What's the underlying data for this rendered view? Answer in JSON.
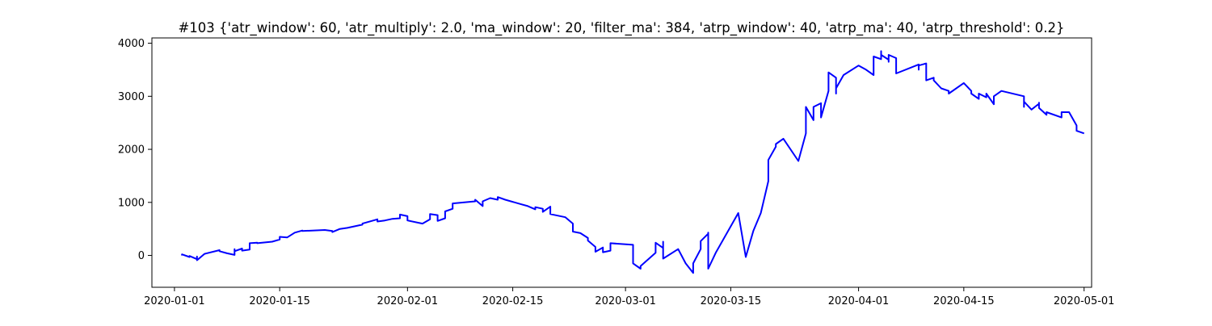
{
  "chart_data": {
    "type": "line",
    "title": "#103 {'atr_window': 60, 'atr_multiply': 2.0, 'ma_window': 20, 'filter_ma': 384, 'atrp_window': 40, 'atrp_ma': 40, 'atrp_threshold': 0.2}",
    "xlabel": "",
    "ylabel": "",
    "x_ticks": [
      "2020-01-01",
      "2020-01-15",
      "2020-02-01",
      "2020-02-15",
      "2020-03-01",
      "2020-03-15",
      "2020-04-01",
      "2020-04-15",
      "2020-05-01"
    ],
    "y_ticks": [
      0,
      1000,
      2000,
      3000,
      4000
    ],
    "xlim": [
      "2019-12-29",
      "2020-05-02"
    ],
    "ylim": [
      -600,
      4100
    ],
    "grid": false,
    "colors": {
      "line": "#0000ff",
      "axes": "#000000",
      "background": "#ffffff"
    },
    "series": [
      {
        "points": [
          [
            "2020-01-02",
            0
          ],
          [
            "2020-01-02",
            20
          ],
          [
            "2020-01-03",
            -30
          ],
          [
            "2020-01-03",
            -10
          ],
          [
            "2020-01-04",
            -70
          ],
          [
            "2020-01-04",
            -20
          ],
          [
            "2020-01-04",
            -90
          ],
          [
            "2020-01-05",
            30
          ],
          [
            "2020-01-07",
            100
          ],
          [
            "2020-01-07",
            80
          ],
          [
            "2020-01-08",
            40
          ],
          [
            "2020-01-09",
            10
          ],
          [
            "2020-01-09",
            120
          ],
          [
            "2020-01-09",
            80
          ],
          [
            "2020-01-10",
            130
          ],
          [
            "2020-01-10",
            90
          ],
          [
            "2020-01-11",
            110
          ],
          [
            "2020-01-11",
            230
          ],
          [
            "2020-01-12",
            240
          ],
          [
            "2020-01-12",
            230
          ],
          [
            "2020-01-14",
            260
          ],
          [
            "2020-01-15",
            300
          ],
          [
            "2020-01-15",
            350
          ],
          [
            "2020-01-16",
            340
          ],
          [
            "2020-01-17",
            430
          ],
          [
            "2020-01-18",
            470
          ],
          [
            "2020-01-18",
            460
          ],
          [
            "2020-01-21",
            480
          ],
          [
            "2020-01-22",
            460
          ],
          [
            "2020-01-22",
            440
          ],
          [
            "2020-01-23",
            500
          ],
          [
            "2020-01-24",
            520
          ],
          [
            "2020-01-26",
            580
          ],
          [
            "2020-01-26",
            600
          ],
          [
            "2020-01-28",
            680
          ],
          [
            "2020-01-28",
            640
          ],
          [
            "2020-01-29",
            660
          ],
          [
            "2020-01-30",
            690
          ],
          [
            "2020-01-31",
            700
          ],
          [
            "2020-01-31",
            770
          ],
          [
            "2020-02-01",
            740
          ],
          [
            "2020-02-01",
            660
          ],
          [
            "2020-02-03",
            600
          ],
          [
            "2020-02-04",
            680
          ],
          [
            "2020-02-04",
            780
          ],
          [
            "2020-02-05",
            760
          ],
          [
            "2020-02-05",
            730
          ],
          [
            "2020-02-05",
            760
          ],
          [
            "2020-02-05",
            650
          ],
          [
            "2020-02-06",
            700
          ],
          [
            "2020-02-06",
            830
          ],
          [
            "2020-02-07",
            880
          ],
          [
            "2020-02-07",
            980
          ],
          [
            "2020-02-10",
            1020
          ],
          [
            "2020-02-10",
            1050
          ],
          [
            "2020-02-11",
            930
          ],
          [
            "2020-02-11",
            970
          ],
          [
            "2020-02-11",
            1020
          ],
          [
            "2020-02-12",
            1080
          ],
          [
            "2020-02-13",
            1050
          ],
          [
            "2020-02-13",
            1100
          ],
          [
            "2020-02-14",
            1050
          ],
          [
            "2020-02-16",
            970
          ],
          [
            "2020-02-17",
            930
          ],
          [
            "2020-02-18",
            870
          ],
          [
            "2020-02-18",
            910
          ],
          [
            "2020-02-19",
            880
          ],
          [
            "2020-02-19",
            820
          ],
          [
            "2020-02-20",
            920
          ],
          [
            "2020-02-20",
            780
          ],
          [
            "2020-02-22",
            720
          ],
          [
            "2020-02-23",
            600
          ],
          [
            "2020-02-23",
            450
          ],
          [
            "2020-02-24",
            420
          ],
          [
            "2020-02-25",
            330
          ],
          [
            "2020-02-25",
            280
          ],
          [
            "2020-02-26",
            160
          ],
          [
            "2020-02-26",
            70
          ],
          [
            "2020-02-27",
            150
          ],
          [
            "2020-02-27",
            60
          ],
          [
            "2020-02-28",
            90
          ],
          [
            "2020-02-28",
            230
          ],
          [
            "2020-03-02",
            200
          ],
          [
            "2020-03-02",
            -150
          ],
          [
            "2020-03-03",
            -250
          ],
          [
            "2020-03-03",
            -200
          ],
          [
            "2020-03-05",
            50
          ],
          [
            "2020-03-05",
            240
          ],
          [
            "2020-03-06",
            140
          ],
          [
            "2020-03-06",
            260
          ],
          [
            "2020-03-06",
            -60
          ],
          [
            "2020-03-08",
            120
          ],
          [
            "2020-03-09",
            -150
          ],
          [
            "2020-03-10",
            -330
          ],
          [
            "2020-03-10",
            -150
          ],
          [
            "2020-03-11",
            120
          ],
          [
            "2020-03-11",
            270
          ],
          [
            "2020-03-12",
            410
          ],
          [
            "2020-03-12",
            430
          ],
          [
            "2020-03-12",
            200
          ],
          [
            "2020-03-12",
            -220
          ],
          [
            "2020-03-12",
            -250
          ],
          [
            "2020-03-13",
            50
          ],
          [
            "2020-03-16",
            800
          ],
          [
            "2020-03-17",
            -30
          ],
          [
            "2020-03-18",
            460
          ],
          [
            "2020-03-19",
            800
          ],
          [
            "2020-03-20",
            1400
          ],
          [
            "2020-03-20",
            1800
          ],
          [
            "2020-03-21",
            2050
          ],
          [
            "2020-03-21",
            2100
          ],
          [
            "2020-03-22",
            2200
          ],
          [
            "2020-03-24",
            1780
          ],
          [
            "2020-03-25",
            2300
          ],
          [
            "2020-03-25",
            2800
          ],
          [
            "2020-03-26",
            2550
          ],
          [
            "2020-03-26",
            2800
          ],
          [
            "2020-03-27",
            2870
          ],
          [
            "2020-03-27",
            2600
          ],
          [
            "2020-03-28",
            3100
          ],
          [
            "2020-03-28",
            3450
          ],
          [
            "2020-03-29",
            3350
          ],
          [
            "2020-03-29",
            3050
          ],
          [
            "2020-03-29",
            3150
          ],
          [
            "2020-03-30",
            3400
          ],
          [
            "2020-04-01",
            3580
          ],
          [
            "2020-04-02",
            3500
          ],
          [
            "2020-04-03",
            3400
          ],
          [
            "2020-04-03",
            3750
          ],
          [
            "2020-04-04",
            3700
          ],
          [
            "2020-04-04",
            3850
          ],
          [
            "2020-04-04",
            3780
          ],
          [
            "2020-04-05",
            3690
          ],
          [
            "2020-04-05",
            3650
          ],
          [
            "2020-04-05",
            3780
          ],
          [
            "2020-04-06",
            3720
          ],
          [
            "2020-04-06",
            3600
          ],
          [
            "2020-04-06",
            3430
          ],
          [
            "2020-04-09",
            3600
          ],
          [
            "2020-04-09",
            3500
          ],
          [
            "2020-04-09",
            3580
          ],
          [
            "2020-04-10",
            3620
          ],
          [
            "2020-04-10",
            3550
          ],
          [
            "2020-04-10",
            3620
          ],
          [
            "2020-04-10",
            3300
          ],
          [
            "2020-04-11",
            3350
          ],
          [
            "2020-04-11",
            3300
          ],
          [
            "2020-04-12",
            3150
          ],
          [
            "2020-04-13",
            3100
          ],
          [
            "2020-04-13",
            3050
          ],
          [
            "2020-04-15",
            3250
          ],
          [
            "2020-04-16",
            3100
          ],
          [
            "2020-04-16",
            3050
          ],
          [
            "2020-04-17",
            2950
          ],
          [
            "2020-04-17",
            3050
          ],
          [
            "2020-04-18",
            2980
          ],
          [
            "2020-04-18",
            3050
          ],
          [
            "2020-04-19",
            2850
          ],
          [
            "2020-04-19",
            3000
          ],
          [
            "2020-04-20",
            3100
          ],
          [
            "2020-04-23",
            3000
          ],
          [
            "2020-04-23",
            2800
          ],
          [
            "2020-04-23",
            2900
          ],
          [
            "2020-04-24",
            2750
          ],
          [
            "2020-04-25",
            2860
          ],
          [
            "2020-04-25",
            2880
          ],
          [
            "2020-04-25",
            2780
          ],
          [
            "2020-04-26",
            2650
          ],
          [
            "2020-04-26",
            2700
          ],
          [
            "2020-04-28",
            2600
          ],
          [
            "2020-04-28",
            2700
          ],
          [
            "2020-04-29",
            2700
          ],
          [
            "2020-04-30",
            2450
          ],
          [
            "2020-04-30",
            2350
          ],
          [
            "2020-05-01",
            2300
          ]
        ]
      }
    ]
  }
}
